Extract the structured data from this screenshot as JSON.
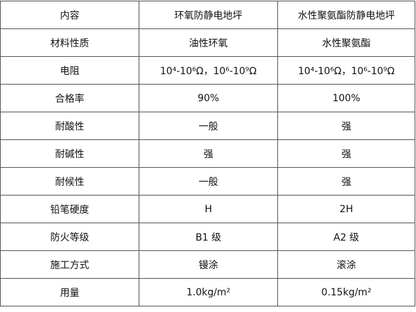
{
  "table": {
    "headers": [
      "内容",
      "环氧防静电地坪",
      "水性聚氨酯防静电地坪"
    ],
    "rows": [
      [
        "材料性质",
        "油性环氧",
        "水性聚氨酯"
      ],
      [
        "电阻",
        "10⁴-10⁶Ω，10⁶-10⁹Ω",
        "10⁴-10⁶Ω，10⁶-10⁹Ω"
      ],
      [
        "合格率",
        "90%",
        "100%"
      ],
      [
        "耐酸性",
        "一般",
        "强"
      ],
      [
        "耐碱性",
        "强",
        "强"
      ],
      [
        "耐候性",
        "一般",
        "强"
      ],
      [
        "铅笔硬度",
        "H",
        "2H"
      ],
      [
        "防火等级",
        "B1 级",
        "A2 级"
      ],
      [
        "施工方式",
        "镘涂",
        "滚涂"
      ],
      [
        "用量",
        "1.0kg/m²",
        "0.15kg/m²"
      ]
    ]
  }
}
